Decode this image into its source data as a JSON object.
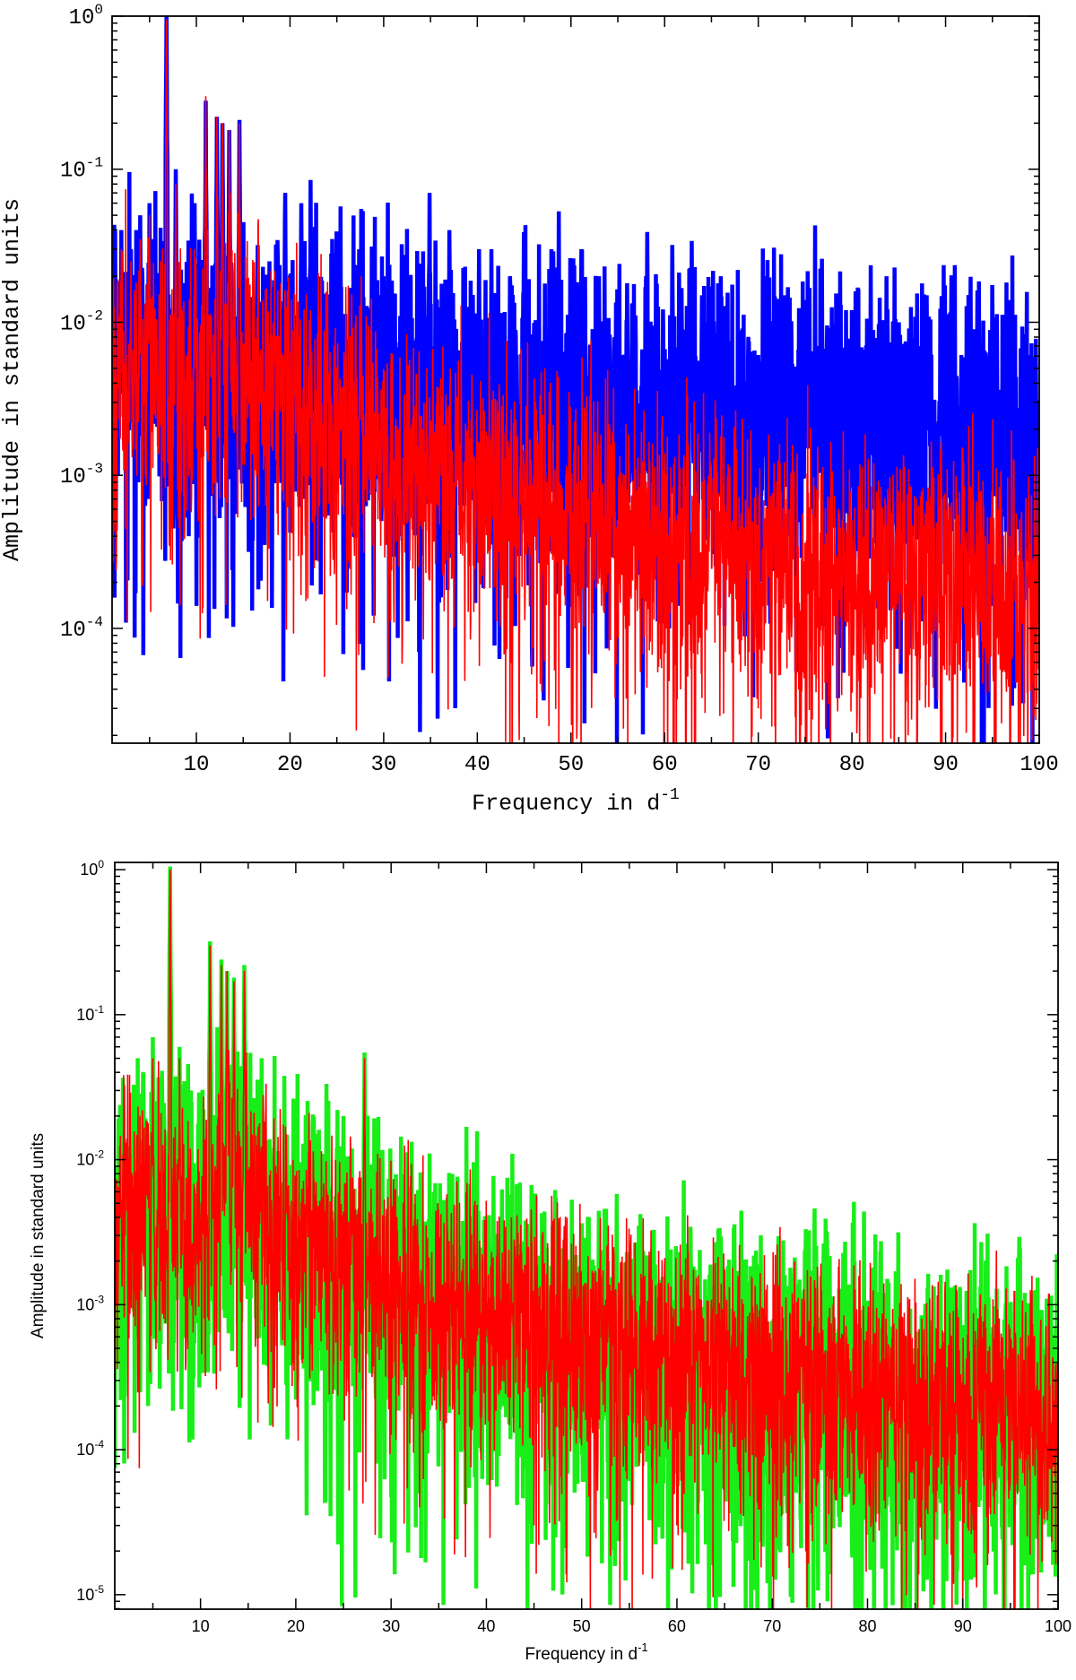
{
  "chart_data": [
    {
      "type": "line",
      "scale": "log-y",
      "xlabel": "Frequency in d",
      "xlabel_sup": "-1",
      "ylabel": "Amplitude in standard units",
      "xlim": [
        1,
        100
      ],
      "ylim_log10": [
        -4.75,
        0
      ],
      "xticks": [
        10,
        20,
        30,
        40,
        50,
        60,
        70,
        80,
        90,
        100
      ],
      "yticks": [
        {
          "base": "10",
          "exp": "0",
          "log10": 0
        },
        {
          "base": "10",
          "exp": "-1",
          "log10": -1
        },
        {
          "base": "10",
          "exp": "-2",
          "log10": -2
        },
        {
          "base": "10",
          "exp": "-3",
          "log10": -3
        },
        {
          "base": "10",
          "exp": "-4",
          "log10": -4
        }
      ],
      "series": [
        {
          "name": "blue spectrum",
          "color": "#0000ff",
          "width": 4.5,
          "seed": 11,
          "baseline": [
            [
              1,
              0.006
            ],
            [
              5,
              0.005
            ],
            [
              8,
              0.003
            ],
            [
              10,
              0.004
            ],
            [
              15,
              0.004
            ],
            [
              25,
              0.004
            ],
            [
              35,
              0.0032
            ],
            [
              50,
              0.0028
            ],
            [
              65,
              0.0024
            ],
            [
              80,
              0.0022
            ],
            [
              100,
              0.0018
            ]
          ],
          "noise_sigma": 0.45,
          "deep_dip_prob": 0.06,
          "deep_dip_factor": 0.1,
          "peaks": [
            [
              6.8,
              1.0
            ],
            [
              11.0,
              0.28
            ],
            [
              12.2,
              0.22
            ],
            [
              12.8,
              0.2
            ],
            [
              13.5,
              0.18
            ],
            [
              14.6,
              0.21
            ],
            [
              5.0,
              0.06
            ],
            [
              4.0,
              0.05
            ],
            [
              7.8,
              0.1
            ],
            [
              9.2,
              0.07
            ],
            [
              9.8,
              0.06
            ],
            [
              2.0,
              0.04
            ],
            [
              3.0,
              0.03
            ],
            [
              19.5,
              0.07
            ],
            [
              21.2,
              0.06
            ],
            [
              22.2,
              0.085
            ],
            [
              27.6,
              0.055
            ],
            [
              34.9,
              0.07
            ],
            [
              37.0,
              0.04
            ],
            [
              40.2,
              0.03
            ],
            [
              41.5,
              0.03
            ],
            [
              48.7,
              0.053
            ],
            [
              47.9,
              0.03
            ],
            [
              51.1,
              0.03
            ],
            [
              53.0,
              0.02
            ],
            [
              60.8,
              0.032
            ],
            [
              62.9,
              0.034
            ],
            [
              66.0,
              0.02
            ],
            [
              70.6,
              0.02
            ],
            [
              76.8,
              0.026
            ],
            [
              72.8,
              0.015
            ],
            [
              80.0,
              0.012
            ],
            [
              85.0,
              0.01
            ],
            [
              88.0,
              0.015
            ],
            [
              91.0,
              0.012
            ],
            [
              95.0,
              0.01
            ],
            [
              98.5,
              0.008
            ],
            [
              16.5,
              0.02
            ],
            [
              17.8,
              0.025
            ],
            [
              25.0,
              0.025
            ],
            [
              30.0,
              0.02
            ],
            [
              32.0,
              0.025
            ],
            [
              43.5,
              0.02
            ],
            [
              56.0,
              0.018
            ],
            [
              58.0,
              0.02
            ],
            [
              64.0,
              0.015
            ],
            [
              75.0,
              0.014
            ],
            [
              82.0,
              0.012
            ],
            [
              93.0,
              0.009
            ]
          ],
          "dips": [
            [
              2.5,
              0.00035
            ],
            [
              3.8,
              0.0009
            ],
            [
              4.8,
              0.0007
            ],
            [
              7.6,
              0.0006
            ],
            [
              9.2,
              0.0004
            ],
            [
              16.6,
              0.00018
            ],
            [
              19.3,
              4.5e-05
            ],
            [
              27.5,
              0.0001
            ],
            [
              34.0,
              0.0003
            ],
            [
              60.5,
              0.0001
            ],
            [
              78.5,
              3.5e-05
            ],
            [
              94.1,
              1.8e-05
            ],
            [
              99.5,
              8e-05
            ]
          ]
        },
        {
          "name": "red spectrum (top)",
          "color": "#ff0000",
          "width": 1.6,
          "seed": 23,
          "baseline": [
            [
              1,
              0.005
            ],
            [
              5,
              0.005
            ],
            [
              8,
              0.003
            ],
            [
              10,
              0.004
            ],
            [
              12,
              0.006
            ],
            [
              16,
              0.005
            ],
            [
              20,
              0.0035
            ],
            [
              25,
              0.0025
            ],
            [
              30,
              0.0014
            ],
            [
              40,
              0.0009
            ],
            [
              50,
              0.0006
            ],
            [
              60,
              0.00042
            ],
            [
              70,
              0.0003
            ],
            [
              80,
              0.00025
            ],
            [
              90,
              0.00022
            ],
            [
              100,
              0.00018
            ]
          ],
          "noise_sigma": 0.42,
          "deep_dip_prob": 0.08,
          "deep_dip_factor": 0.15,
          "peaks": [
            [
              6.8,
              0.95
            ],
            [
              11.0,
              0.3
            ],
            [
              12.2,
              0.22
            ],
            [
              12.8,
              0.2
            ],
            [
              13.5,
              0.18
            ],
            [
              14.6,
              0.2
            ],
            [
              5.0,
              0.05
            ],
            [
              4.0,
              0.035
            ],
            [
              7.8,
              0.08
            ],
            [
              9.8,
              0.03
            ],
            [
              2.0,
              0.03
            ],
            [
              3.0,
              0.025
            ],
            [
              27.6,
              0.02
            ],
            [
              19.5,
              0.015
            ],
            [
              22.2,
              0.012
            ]
          ],
          "dips": [
            [
              8.0,
              0.0008
            ],
            [
              10.2,
              0.0005
            ],
            [
              32.0,
              8e-05
            ],
            [
              45.8,
              5e-05
            ],
            [
              62.9,
              1.8e-05
            ],
            [
              70.0,
              3e-05
            ],
            [
              77.2,
              2.2e-05
            ],
            [
              86.0,
              2e-05
            ],
            [
              87.0,
              1.8e-05
            ]
          ]
        }
      ]
    },
    {
      "type": "line",
      "scale": "log-y",
      "xlabel": "Frequency in d",
      "xlabel_sup": "-1",
      "ylabel": "Amplitude in standard units",
      "xlim": [
        1,
        100
      ],
      "ylim_log10": [
        -5.1,
        0.05
      ],
      "xticks": [
        10,
        20,
        30,
        40,
        50,
        60,
        70,
        80,
        90,
        100
      ],
      "yticks": [
        {
          "base": "10",
          "exp": "0",
          "log10": 0
        },
        {
          "base": "10",
          "exp": "-1",
          "log10": -1
        },
        {
          "base": "10",
          "exp": "-2",
          "log10": -2
        },
        {
          "base": "10",
          "exp": "-3",
          "log10": -3
        },
        {
          "base": "10",
          "exp": "-4",
          "log10": -4
        },
        {
          "base": "10",
          "exp": "-5",
          "log10": -5
        }
      ],
      "series": [
        {
          "name": "green spectrum",
          "color": "#19ee19",
          "width": 4.5,
          "seed": 37,
          "baseline": [
            [
              1,
              0.005
            ],
            [
              5,
              0.005
            ],
            [
              8,
              0.003
            ],
            [
              10,
              0.004
            ],
            [
              12,
              0.006
            ],
            [
              16,
              0.005
            ],
            [
              20,
              0.0035
            ],
            [
              25,
              0.0025
            ],
            [
              30,
              0.0014
            ],
            [
              40,
              0.0009
            ],
            [
              50,
              0.0006
            ],
            [
              60,
              0.00042
            ],
            [
              70,
              0.0003
            ],
            [
              80,
              0.00025
            ],
            [
              90,
              0.00022
            ],
            [
              100,
              0.00018
            ]
          ],
          "noise_sigma": 0.48,
          "deep_dip_prob": 0.09,
          "deep_dip_factor": 0.12,
          "peaks": [
            [
              6.8,
              1.05
            ],
            [
              11.0,
              0.32
            ],
            [
              12.2,
              0.24
            ],
            [
              12.8,
              0.2
            ],
            [
              13.5,
              0.18
            ],
            [
              14.6,
              0.22
            ],
            [
              5.0,
              0.07
            ],
            [
              4.0,
              0.04
            ],
            [
              7.8,
              0.06
            ],
            [
              9.0,
              0.03
            ],
            [
              27.2,
              0.055
            ],
            [
              34.5,
              0.006
            ],
            [
              19.0,
              0.02
            ],
            [
              22.0,
              0.015
            ],
            [
              25.0,
              0.02
            ],
            [
              98.8,
              0.0011
            ]
          ],
          "dips": [
            [
              4.5,
              0.0002
            ],
            [
              19.0,
              0.00028
            ],
            [
              33.0,
              5e-05
            ],
            [
              35.5,
              8.5e-06
            ],
            [
              53.0,
              8.5e-06
            ],
            [
              69.5,
              1.2e-05
            ],
            [
              75.8,
              9e-06
            ],
            [
              86.5,
              2e-05
            ],
            [
              99.8,
              5e-05
            ]
          ]
        },
        {
          "name": "red spectrum (bottom)",
          "color": "#ff0000",
          "width": 1.6,
          "seed": 53,
          "baseline": [
            [
              1,
              0.005
            ],
            [
              5,
              0.005
            ],
            [
              8,
              0.003
            ],
            [
              10,
              0.004
            ],
            [
              12,
              0.006
            ],
            [
              16,
              0.005
            ],
            [
              20,
              0.0035
            ],
            [
              25,
              0.0025
            ],
            [
              30,
              0.0014
            ],
            [
              40,
              0.0009
            ],
            [
              50,
              0.0006
            ],
            [
              60,
              0.00042
            ],
            [
              70,
              0.0003
            ],
            [
              80,
              0.00025
            ],
            [
              90,
              0.00022
            ],
            [
              100,
              0.00018
            ]
          ],
          "noise_sigma": 0.42,
          "deep_dip_prob": 0.07,
          "deep_dip_factor": 0.15,
          "peaks": [
            [
              6.8,
              1.0
            ],
            [
              11.0,
              0.3
            ],
            [
              12.2,
              0.22
            ],
            [
              12.8,
              0.2
            ],
            [
              13.5,
              0.17
            ],
            [
              14.6,
              0.2
            ],
            [
              5.0,
              0.05
            ],
            [
              7.8,
              0.05
            ],
            [
              27.2,
              0.05
            ],
            [
              19.0,
              0.015
            ]
          ],
          "dips": [
            [
              33.0,
              4e-05
            ],
            [
              45.0,
              3e-05
            ],
            [
              60.0,
              3e-05
            ],
            [
              87.0,
              8.5e-06
            ]
          ]
        }
      ]
    }
  ]
}
